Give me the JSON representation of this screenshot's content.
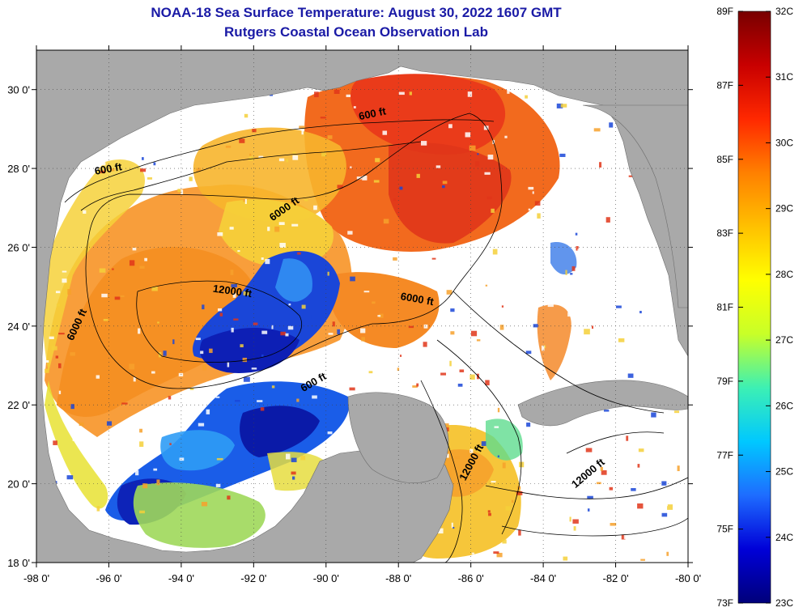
{
  "title": "NOAA-18 Sea Surface Temperature:  August 30, 2022 1607 GMT",
  "subtitle": "Rutgers Coastal Ocean Observation Lab",
  "map": {
    "lon_range": [
      -98,
      -80
    ],
    "lat_range": [
      18,
      31
    ],
    "lon_ticks": [
      "-98 0'",
      "-96 0'",
      "-94 0'",
      "-92 0'",
      "-90 0'",
      "-88 0'",
      "-86 0'",
      "-84 0'",
      "-82 0'",
      "-80 0'"
    ],
    "lat_ticks": [
      "18 0'",
      "20 0'",
      "22 0'",
      "24 0'",
      "26 0'",
      "28 0'",
      "30 0'"
    ],
    "grid": "dotted",
    "land_color": "#a9a9a9",
    "cloud_color": "#ffffff",
    "contour_labels": [
      {
        "text": "600 ft",
        "lon": -88.7,
        "lat": 29.3,
        "angle": -12
      },
      {
        "text": "600 ft",
        "lon": -96.0,
        "lat": 27.9,
        "angle": -10
      },
      {
        "text": "6000 ft",
        "lon": -91.1,
        "lat": 26.9,
        "angle": -35
      },
      {
        "text": "12000 ft",
        "lon": -92.6,
        "lat": 24.8,
        "angle": 8
      },
      {
        "text": "6000 ft",
        "lon": -87.5,
        "lat": 24.6,
        "angle": 10
      },
      {
        "text": "6000 ft",
        "lon": -96.8,
        "lat": 24.0,
        "angle": -65
      },
      {
        "text": "600 ft",
        "lon": -90.3,
        "lat": 22.5,
        "angle": -30
      },
      {
        "text": "12000 ft",
        "lon": -85.9,
        "lat": 20.5,
        "angle": -62
      },
      {
        "text": "12000 ft",
        "lon": -82.7,
        "lat": 20.2,
        "angle": -40
      }
    ]
  },
  "colorbar": {
    "celsius_labels": [
      "32C",
      "31C",
      "30C",
      "29C",
      "28C",
      "27C",
      "26C",
      "25C",
      "24C",
      "23C"
    ],
    "fahrenheit_labels": [
      "89F",
      "87F",
      "85F",
      "83F",
      "81F",
      "79F",
      "77F",
      "75F",
      "73F"
    ],
    "celsius_range": [
      23,
      32
    ],
    "fahrenheit_range": [
      73,
      89
    ],
    "stops": [
      "#00007a",
      "#0000d8",
      "#1e6cff",
      "#00c8ff",
      "#3cf0b4",
      "#c8ff28",
      "#ffff00",
      "#ffc000",
      "#ff8000",
      "#ff2800",
      "#c80000",
      "#780000"
    ]
  }
}
